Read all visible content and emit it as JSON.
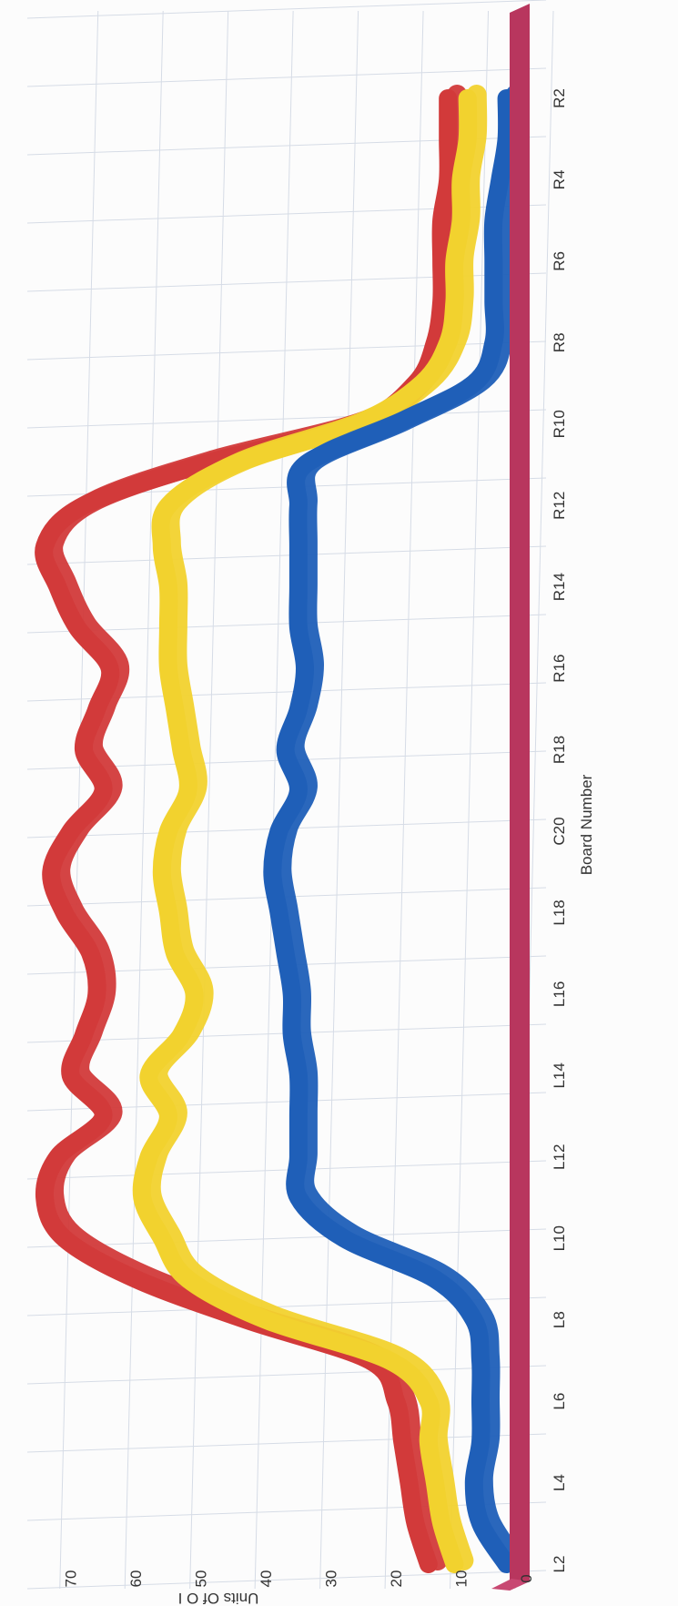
{
  "chart_data": {
    "type": "line",
    "orientation": "rotated-90-clockwise",
    "style": "3d-ribbon",
    "xlabel": "Board Number",
    "ylabel": "Units Of O I",
    "categories": [
      "L2",
      "L3",
      "L4",
      "L5",
      "L6",
      "L7",
      "L8",
      "L9",
      "L10",
      "L11",
      "L12",
      "L13",
      "L14",
      "L15",
      "L16",
      "L17",
      "L18",
      "L19",
      "C20",
      "R19",
      "R18",
      "R17",
      "R16",
      "R15",
      "R14",
      "R13",
      "R12",
      "R11",
      "R10",
      "R9",
      "R8",
      "R7",
      "R6",
      "R5",
      "R4",
      "R3",
      "R2"
    ],
    "x_tick_labels": [
      "L2",
      "L4",
      "L6",
      "L8",
      "L10",
      "L12",
      "L14",
      "L16",
      "L18",
      "C20",
      "R18",
      "R16",
      "R14",
      "R12",
      "R10",
      "R8",
      "R6",
      "R4",
      "R2"
    ],
    "y_ticks": [
      "0",
      "10",
      "20",
      "30",
      "40",
      "50",
      "60",
      "70"
    ],
    "ylim": [
      0,
      75
    ],
    "grid": true,
    "legend": "none",
    "series": [
      {
        "color": "#d23a3a",
        "values": [
          15,
          17,
          18,
          19,
          20,
          24,
          43,
          60,
          71,
          74,
          72,
          65,
          70,
          68,
          66,
          67,
          71,
          73,
          70,
          65,
          68,
          66,
          64,
          69,
          72,
          74,
          68,
          50,
          26,
          17,
          14,
          13,
          13,
          13,
          12,
          12,
          12
        ]
      },
      {
        "color": "#f2d22e",
        "values": [
          11,
          13,
          14,
          15,
          15,
          21,
          40,
          52,
          56,
          59,
          58,
          55,
          58,
          53,
          51,
          54,
          55,
          56,
          55,
          52,
          53,
          54,
          55,
          55,
          55,
          56,
          55,
          45,
          26,
          16,
          12,
          11,
          11,
          10,
          10,
          9,
          9
        ]
      },
      {
        "color": "#1f5fb8",
        "values": [
          3,
          7,
          8,
          7,
          7,
          7,
          8,
          14,
          28,
          35,
          35,
          35,
          35,
          36,
          36,
          37,
          38,
          39,
          38,
          35,
          37,
          35,
          34,
          35,
          35,
          35,
          35,
          34,
          20,
          8,
          5,
          5,
          5,
          5,
          4,
          3,
          3
        ]
      }
    ],
    "floor_color": "#b8365e"
  }
}
